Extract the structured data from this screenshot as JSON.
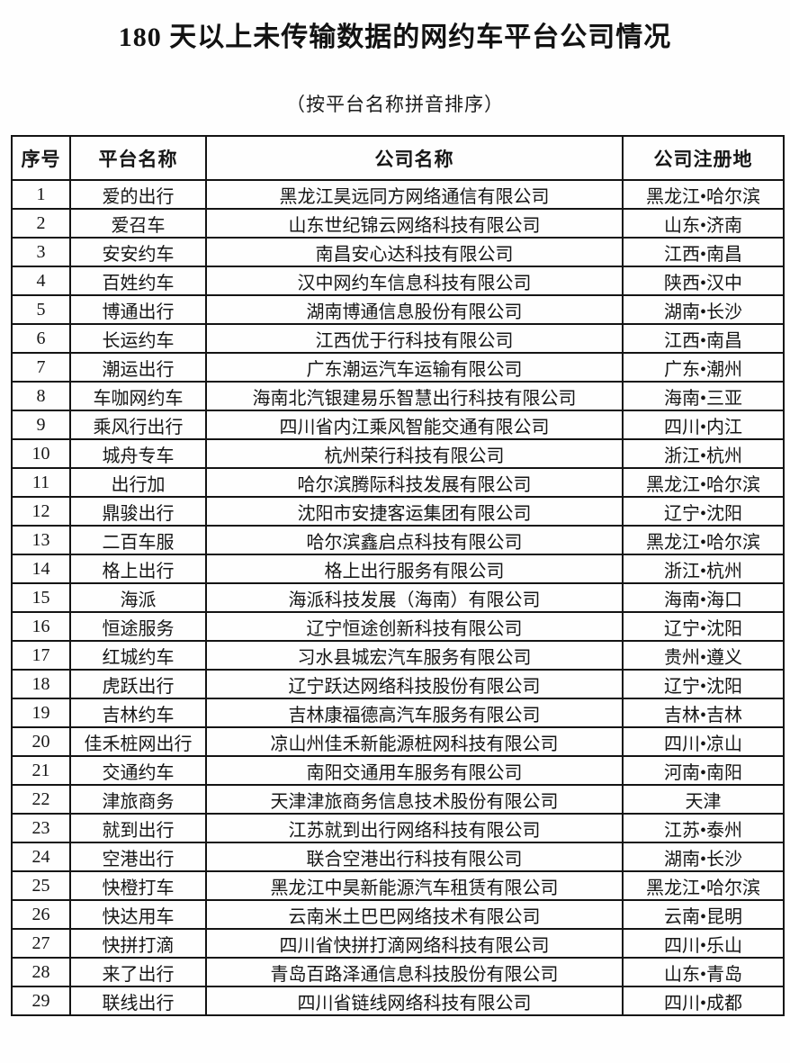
{
  "page": {
    "title": "180 天以上未传输数据的网约车平台公司情况",
    "subtitle": "（按平台名称拼音排序）"
  },
  "colors": {
    "background": "#fefefe",
    "text": "#161616",
    "border": "#141414"
  },
  "table": {
    "columns": [
      {
        "key": "no",
        "label": "序号"
      },
      {
        "key": "platform",
        "label": "平台名称"
      },
      {
        "key": "company",
        "label": "公司名称"
      },
      {
        "key": "location",
        "label": "公司注册地"
      }
    ],
    "rows": [
      {
        "no": "1",
        "platform": "爱的出行",
        "company": "黑龙江昊远同方网络通信有限公司",
        "location": "黑龙江•哈尔滨"
      },
      {
        "no": "2",
        "platform": "爱召车",
        "company": "山东世纪锦云网络科技有限公司",
        "location": "山东•济南"
      },
      {
        "no": "3",
        "platform": "安安约车",
        "company": "南昌安心达科技有限公司",
        "location": "江西•南昌"
      },
      {
        "no": "4",
        "platform": "百姓约车",
        "company": "汉中网约车信息科技有限公司",
        "location": "陕西•汉中"
      },
      {
        "no": "5",
        "platform": "博通出行",
        "company": "湖南博通信息股份有限公司",
        "location": "湖南•长沙"
      },
      {
        "no": "6",
        "platform": "长运约车",
        "company": "江西优于行科技有限公司",
        "location": "江西•南昌"
      },
      {
        "no": "7",
        "platform": "潮运出行",
        "company": "广东潮运汽车运输有限公司",
        "location": "广东•潮州"
      },
      {
        "no": "8",
        "platform": "车咖网约车",
        "company": "海南北汽银建易乐智慧出行科技有限公司",
        "location": "海南•三亚"
      },
      {
        "no": "9",
        "platform": "乘风行出行",
        "company": "四川省内江乘风智能交通有限公司",
        "location": "四川•内江"
      },
      {
        "no": "10",
        "platform": "城舟专车",
        "company": "杭州荣行科技有限公司",
        "location": "浙江•杭州"
      },
      {
        "no": "11",
        "platform": "出行加",
        "company": "哈尔滨腾际科技发展有限公司",
        "location": "黑龙江•哈尔滨"
      },
      {
        "no": "12",
        "platform": "鼎骏出行",
        "company": "沈阳市安捷客运集团有限公司",
        "location": "辽宁•沈阳"
      },
      {
        "no": "13",
        "platform": "二百车服",
        "company": "哈尔滨鑫启点科技有限公司",
        "location": "黑龙江•哈尔滨"
      },
      {
        "no": "14",
        "platform": "格上出行",
        "company": "格上出行服务有限公司",
        "location": "浙江•杭州"
      },
      {
        "no": "15",
        "platform": "海派",
        "company": "海派科技发展（海南）有限公司",
        "location": "海南•海口"
      },
      {
        "no": "16",
        "platform": "恒途服务",
        "company": "辽宁恒途创新科技有限公司",
        "location": "辽宁•沈阳"
      },
      {
        "no": "17",
        "platform": "红城约车",
        "company": "习水县城宏汽车服务有限公司",
        "location": "贵州•遵义"
      },
      {
        "no": "18",
        "platform": "虎跃出行",
        "company": "辽宁跃达网络科技股份有限公司",
        "location": "辽宁•沈阳"
      },
      {
        "no": "19",
        "platform": "吉林约车",
        "company": "吉林康福德高汽车服务有限公司",
        "location": "吉林•吉林"
      },
      {
        "no": "20",
        "platform": "佳禾桩网出行",
        "company": "凉山州佳禾新能源桩网科技有限公司",
        "location": "四川•凉山"
      },
      {
        "no": "21",
        "platform": "交通约车",
        "company": "南阳交通用车服务有限公司",
        "location": "河南•南阳"
      },
      {
        "no": "22",
        "platform": "津旅商务",
        "company": "天津津旅商务信息技术股份有限公司",
        "location": "天津"
      },
      {
        "no": "23",
        "platform": "就到出行",
        "company": "江苏就到出行网络科技有限公司",
        "location": "江苏•泰州"
      },
      {
        "no": "24",
        "platform": "空港出行",
        "company": "联合空港出行科技有限公司",
        "location": "湖南•长沙"
      },
      {
        "no": "25",
        "platform": "快橙打车",
        "company": "黑龙江中昊新能源汽车租赁有限公司",
        "location": "黑龙江•哈尔滨"
      },
      {
        "no": "26",
        "platform": "快达用车",
        "company": "云南米土巴巴网络技术有限公司",
        "location": "云南•昆明"
      },
      {
        "no": "27",
        "platform": "快拼打滴",
        "company": "四川省快拼打滴网络科技有限公司",
        "location": "四川•乐山"
      },
      {
        "no": "28",
        "platform": "来了出行",
        "company": "青岛百路泽通信息科技股份有限公司",
        "location": "山东•青岛"
      },
      {
        "no": "29",
        "platform": "联线出行",
        "company": "四川省链线网络科技有限公司",
        "location": "四川•成都"
      }
    ]
  }
}
